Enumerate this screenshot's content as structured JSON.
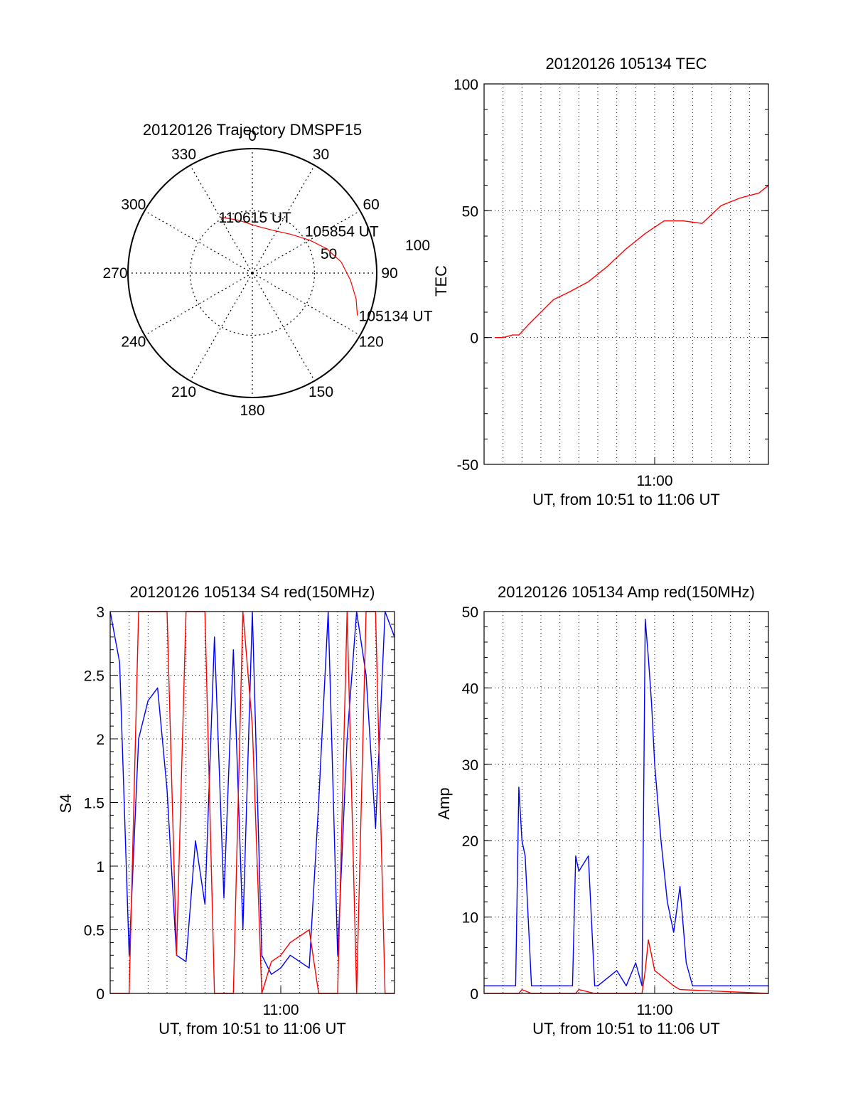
{
  "colors": {
    "red": "#ff0000",
    "blue": "#0000ff",
    "axis": "#000000",
    "grid": "#000000",
    "background": "#ffffff"
  },
  "chart_data": [
    {
      "id": "trajectory",
      "type": "polar",
      "title": "20120126 Trajectory DMSPF15",
      "azimuth_labels": [
        "0",
        "30",
        "60",
        "90",
        "120",
        "150",
        "180",
        "210",
        "240",
        "270",
        "300",
        "330"
      ],
      "radial_labels": [
        "50",
        "100"
      ],
      "radial_range": [
        0,
        100
      ],
      "grid": true,
      "series": [
        {
          "color": "red",
          "points": [
            {
              "az": 112,
              "el": 9
            },
            {
              "az": 104,
              "el": 14
            },
            {
              "az": 94,
              "el": 21
            },
            {
              "az": 83,
              "el": 28
            },
            {
              "az": 72,
              "el": 37
            },
            {
              "az": 60,
              "el": 47
            },
            {
              "az": 45,
              "el": 56
            },
            {
              "az": 25,
              "el": 62
            },
            {
              "az": 5,
              "el": 62
            },
            {
              "az": -15,
              "el": 56
            },
            {
              "az": -30,
              "el": 48
            }
          ]
        }
      ],
      "annotations": [
        {
          "text": "110615 UT",
          "az": -30,
          "el": 48
        },
        {
          "text": "105854 UT",
          "az": 52,
          "el": 45
        },
        {
          "text": "105134 UT",
          "az": 112,
          "el": 9
        }
      ]
    },
    {
      "id": "tec",
      "type": "line",
      "title": "20120126 105134 TEC",
      "xlabel": "UT, from 10:51 to 11:06 UT",
      "ylabel": "TEC",
      "xlim": [
        "10:51",
        "11:06"
      ],
      "ylim": [
        -50,
        100
      ],
      "yticks": [
        "-50",
        "0",
        "50",
        "100"
      ],
      "xticks": [
        {
          "t": "11:00",
          "label": "11:00"
        }
      ],
      "grid": true,
      "series": [
        {
          "color": "red",
          "x": [
            "10:51:34",
            "10:52:00",
            "10:52:30",
            "10:52:50",
            "10:53:20",
            "10:54:00",
            "10:54:40",
            "10:55:30",
            "10:56:30",
            "10:57:30",
            "10:58:30",
            "10:59:30",
            "11:00:30",
            "11:01:30",
            "11:02:30",
            "11:03:30",
            "11:04:30",
            "11:05:30",
            "11:06:00"
          ],
          "y": [
            0,
            0,
            1,
            1,
            5,
            10,
            15,
            18,
            22,
            28,
            35,
            41,
            46,
            46,
            45,
            52,
            55,
            57,
            60
          ]
        }
      ]
    },
    {
      "id": "s4",
      "type": "line",
      "title": "20120126 105134 S4 red(150MHz)",
      "xlabel": "UT, from 10:51 to 11:06 UT",
      "ylabel": "S4",
      "xlim": [
        "10:51",
        "11:06"
      ],
      "ylim": [
        0,
        3
      ],
      "yticks": [
        "0",
        "0.5",
        "1",
        "1.5",
        "2",
        "2.5",
        "3"
      ],
      "xticks": [
        {
          "t": "11:00",
          "label": "11:00"
        }
      ],
      "grid": true,
      "series": [
        {
          "color": "blue",
          "x": [
            "10:51:00",
            "10:51:30",
            "10:52:00",
            "10:52:30",
            "10:53:00",
            "10:53:30",
            "10:54:00",
            "10:54:30",
            "10:55:00",
            "10:55:30",
            "10:56:00",
            "10:56:30",
            "10:57:00",
            "10:57:30",
            "10:58:00",
            "10:58:30",
            "10:59:00",
            "10:59:30",
            "11:00:00",
            "11:00:30",
            "11:01:00",
            "11:01:30",
            "11:02:00",
            "11:02:30",
            "11:03:00",
            "11:03:30",
            "11:04:00",
            "11:04:30",
            "11:05:00",
            "11:05:30",
            "11:06:00"
          ],
          "y": [
            3.0,
            2.6,
            0.3,
            2.0,
            2.3,
            2.4,
            1.6,
            0.3,
            0.25,
            1.2,
            0.7,
            2.8,
            0.75,
            2.7,
            0.5,
            3.0,
            0.3,
            0.15,
            0.2,
            0.3,
            0.25,
            0.2,
            1.5,
            3.0,
            0.3,
            2.0,
            3.0,
            2.5,
            1.3,
            3.0,
            2.8
          ]
        },
        {
          "color": "red",
          "x": [
            "10:51:00",
            "10:51:30",
            "10:52:00",
            "10:52:30",
            "10:53:00",
            "10:53:30",
            "10:54:00",
            "10:54:30",
            "10:55:00",
            "10:55:30",
            "10:56:00",
            "10:56:30",
            "10:57:00",
            "10:57:30",
            "10:58:00",
            "10:58:30",
            "10:59:00",
            "10:59:30",
            "11:00:00",
            "11:00:30",
            "11:01:00",
            "11:01:30",
            "11:02:00",
            "11:02:30",
            "11:03:00",
            "11:03:30",
            "11:04:00",
            "11:04:30",
            "11:05:00",
            "11:05:30",
            "11:06:00"
          ],
          "y": [
            0.0,
            0.0,
            0.0,
            3.0,
            3.0,
            3.0,
            3.0,
            0.3,
            3.0,
            3.0,
            3.0,
            0.0,
            0.0,
            0.0,
            3.0,
            2.1,
            0.0,
            0.25,
            0.3,
            0.4,
            0.45,
            0.5,
            0.0,
            0.0,
            0.0,
            3.0,
            0.0,
            3.0,
            3.0,
            0.0,
            0.0
          ]
        }
      ]
    },
    {
      "id": "amp",
      "type": "line",
      "title": "20120126 105134 Amp red(150MHz)",
      "xlabel": "UT, from 10:51 to 11:06 UT",
      "ylabel": "Amp",
      "xlim": [
        "10:51",
        "11:06"
      ],
      "ylim": [
        0,
        50
      ],
      "yticks": [
        "0",
        "10",
        "20",
        "30",
        "40",
        "50"
      ],
      "xticks": [
        {
          "t": "11:00",
          "label": "11:00"
        }
      ],
      "grid": true,
      "series": [
        {
          "color": "blue",
          "x": [
            "10:51:00",
            "10:52:00",
            "10:52:40",
            "10:52:50",
            "10:53:00",
            "10:53:10",
            "10:53:30",
            "10:54:00",
            "10:55:00",
            "10:55:40",
            "10:55:50",
            "10:56:00",
            "10:56:30",
            "10:56:50",
            "10:57:00",
            "10:58:00",
            "10:58:30",
            "10:59:00",
            "10:59:20",
            "10:59:30",
            "10:59:40",
            "10:59:50",
            "11:00:00",
            "11:00:20",
            "11:00:40",
            "11:01:00",
            "11:01:20",
            "11:01:40",
            "11:02:00",
            "11:03:00",
            "11:04:00",
            "11:05:00",
            "11:06:00"
          ],
          "y": [
            1,
            1,
            1,
            27,
            20,
            18,
            1,
            1,
            1,
            1,
            18,
            16,
            18,
            1,
            1,
            3,
            1,
            4,
            1,
            49,
            44,
            38,
            30,
            20,
            12,
            8,
            14,
            4,
            1,
            1,
            1,
            1,
            1
          ]
        },
        {
          "color": "red",
          "x": [
            "10:51:00",
            "10:52:50",
            "10:53:00",
            "10:53:30",
            "10:55:50",
            "10:56:00",
            "10:56:50",
            "10:59:20",
            "10:59:30",
            "10:59:40",
            "10:59:50",
            "11:00:00",
            "11:00:30",
            "11:01:00",
            "11:01:20",
            "11:06:00"
          ],
          "y": [
            0,
            0,
            0.5,
            0,
            0,
            0.5,
            0,
            0,
            3,
            7,
            5,
            3,
            2,
            1,
            0.5,
            0
          ]
        }
      ]
    }
  ]
}
